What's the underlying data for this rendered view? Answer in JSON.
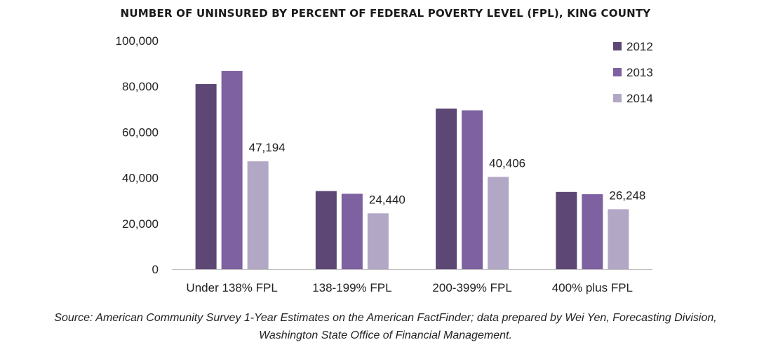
{
  "chart_data": {
    "type": "bar",
    "title": "NUMBER OF UNINSURED BY PERCENT OF FEDERAL POVERTY LEVEL (FPL), KING COUNTY",
    "categories": [
      "Under 138% FPL",
      "138-199% FPL",
      "200-399% FPL",
      "400% plus FPL"
    ],
    "series": [
      {
        "name": "2012",
        "color": "#5c4775",
        "values": [
          81000,
          34200,
          70300,
          33800
        ]
      },
      {
        "name": "2013",
        "color": "#7e61a0",
        "values": [
          86800,
          33000,
          69500,
          32800
        ]
      },
      {
        "name": "2014",
        "color": "#b2a7c5",
        "values": [
          47194,
          24440,
          40406,
          26248
        ]
      }
    ],
    "data_labels": {
      "series": "2014",
      "texts": [
        "47,194",
        "24,440",
        "40,406",
        "26,248"
      ]
    },
    "ylim": [
      0,
      100000
    ],
    "yticks": [
      0,
      20000,
      40000,
      60000,
      80000,
      100000
    ],
    "ytick_labels": [
      "0",
      "20,000",
      "40,000",
      "60,000",
      "80,000",
      "100,000"
    ],
    "grid": false,
    "legend_position": "top-right"
  },
  "source_line1": "Source: American Community Survey 1-Year Estimates on the American FactFinder; data prepared by Wei Yen, Forecasting Division,",
  "source_line2": "Washington State Office of Financial Management."
}
